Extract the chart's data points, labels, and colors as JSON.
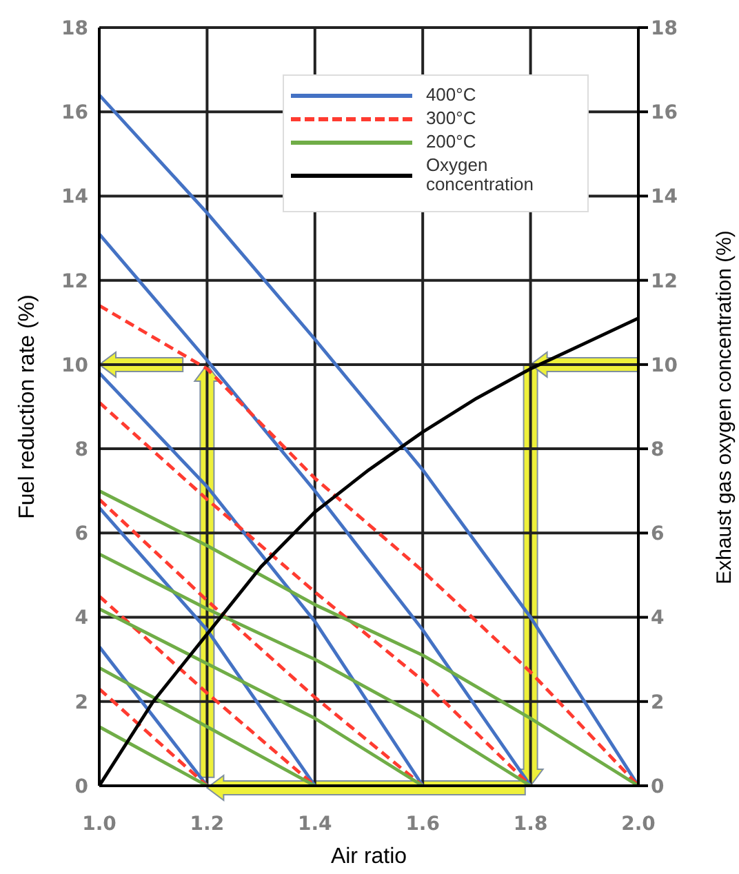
{
  "chart_data": {
    "type": "line",
    "xlabel": "Air ratio",
    "ylabel": "Fuel reduction rate (%)",
    "y2label": "Exhaust gas oxygen concentration (%)",
    "xlim": [
      1.0,
      2.0
    ],
    "xticks": [
      {
        "value": 1.0,
        "label": "1.0"
      },
      {
        "value": 1.2,
        "label": "1.2"
      },
      {
        "value": 1.4,
        "label": "1.4"
      },
      {
        "value": 1.6,
        "label": "1.6"
      },
      {
        "value": 1.8,
        "label": "1.8"
      },
      {
        "value": 2.0,
        "label": "2.0"
      }
    ],
    "ylim": [
      0,
      18
    ],
    "yticks": [
      0,
      2,
      4,
      6,
      8,
      10,
      12,
      14,
      16,
      18
    ],
    "y2lim": [
      0,
      18
    ],
    "y2ticks": [
      0,
      2,
      4,
      6,
      8,
      10,
      12,
      14,
      16,
      18
    ],
    "grid": true,
    "legend": "top right",
    "marker": "none",
    "series": [
      {
        "name": "400°C",
        "color": "#4472c4",
        "x": [
          1.0,
          1.2,
          1.4,
          1.6,
          1.8,
          2.0
        ],
        "values": [
          16.4,
          13.6,
          10.6,
          7.5,
          4.0,
          0
        ]
      },
      {
        "color": "#4472c4",
        "x": [
          1.0,
          1.2,
          1.4,
          1.6,
          1.8
        ],
        "values": [
          13.1,
          10.1,
          7.0,
          3.7,
          0
        ]
      },
      {
        "color": "#4472c4",
        "x": [
          1.0,
          1.2,
          1.4,
          1.6
        ],
        "values": [
          9.8,
          7.1,
          3.9,
          0
        ]
      },
      {
        "color": "#4472c4",
        "x": [
          1.0,
          1.2,
          1.4
        ],
        "values": [
          6.6,
          3.7,
          0
        ]
      },
      {
        "color": "#4472c4",
        "x": [
          1.0,
          1.2
        ],
        "values": [
          3.3,
          0
        ]
      },
      {
        "name": "300°C",
        "color": "#ff3b30",
        "line_style": "dashed",
        "x": [
          1.0,
          1.2,
          1.4,
          1.6,
          1.8,
          2.0
        ],
        "values": [
          11.4,
          9.9,
          7.3,
          5.1,
          2.7,
          0
        ]
      },
      {
        "color": "#ff3b30",
        "line_style": "dashed",
        "x": [
          1.0,
          1.2,
          1.4,
          1.6,
          1.8
        ],
        "values": [
          9.1,
          6.8,
          4.6,
          2.5,
          0
        ]
      },
      {
        "color": "#ff3b30",
        "line_style": "dashed",
        "x": [
          1.0,
          1.2,
          1.4,
          1.6
        ],
        "values": [
          6.8,
          4.4,
          2.1,
          0
        ]
      },
      {
        "color": "#ff3b30",
        "line_style": "dashed",
        "x": [
          1.0,
          1.2,
          1.4
        ],
        "values": [
          4.5,
          2.2,
          0
        ]
      },
      {
        "color": "#ff3b30",
        "line_style": "dashed",
        "x": [
          1.0,
          1.2
        ],
        "values": [
          2.3,
          0
        ]
      },
      {
        "name": "200°C",
        "color": "#70ad47",
        "x": [
          1.0,
          1.2,
          1.4,
          1.6,
          1.8,
          2.0
        ],
        "values": [
          7.0,
          5.7,
          4.3,
          3.1,
          1.6,
          0
        ]
      },
      {
        "color": "#70ad47",
        "x": [
          1.0,
          1.2,
          1.4,
          1.6,
          1.8
        ],
        "values": [
          5.5,
          4.2,
          3.0,
          1.6,
          0
        ]
      },
      {
        "color": "#70ad47",
        "x": [
          1.0,
          1.2,
          1.4,
          1.6
        ],
        "values": [
          4.2,
          2.9,
          1.6,
          0
        ]
      },
      {
        "color": "#70ad47",
        "x": [
          1.0,
          1.2,
          1.4
        ],
        "values": [
          2.8,
          1.4,
          0
        ]
      },
      {
        "color": "#70ad47",
        "x": [
          1.0,
          1.2
        ],
        "values": [
          1.4,
          0
        ]
      },
      {
        "name": "Oxygen concentration",
        "color": "#000000",
        "axis": "y2",
        "x": [
          1.0,
          1.1,
          1.2,
          1.3,
          1.4,
          1.5,
          1.6,
          1.7,
          1.8,
          1.9,
          2.0
        ],
        "values": [
          0,
          2.0,
          3.6,
          5.2,
          6.5,
          7.5,
          8.4,
          9.2,
          9.9,
          10.5,
          11.1
        ]
      }
    ]
  }
}
